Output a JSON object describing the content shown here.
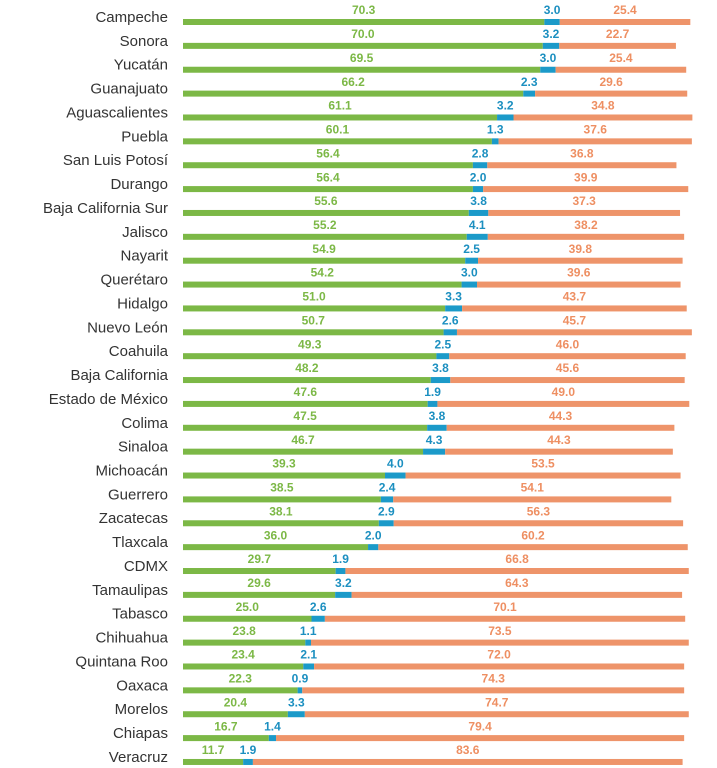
{
  "chart_data": {
    "type": "stacked-bar-horizontal",
    "categories": [
      "Campeche",
      "Sonora",
      "Yucatán",
      "Guanajuato",
      "Aguascalientes",
      "Puebla",
      "San Luis Potosí",
      "Durango",
      "Baja California Sur",
      "Jalisco",
      "Nayarit",
      "Querétaro",
      "Hidalgo",
      "Nuevo León",
      "Coahuila",
      "Baja California",
      "Estado de México",
      "Colima",
      "Sinaloa",
      "Michoacán",
      "Guerrero",
      "Zacatecas",
      "Tlaxcala",
      "CDMX",
      "Tamaulipas",
      "Tabasco",
      "Chihuahua",
      "Quintana Roo",
      "Oaxaca",
      "Morelos",
      "Chiapas",
      "Veracruz"
    ],
    "xlim": [
      0,
      100
    ],
    "series": [
      {
        "color": "#7cb846",
        "label_color": "#7cb846",
        "values": [
          70.3,
          70.0,
          69.5,
          66.2,
          61.1,
          60.1,
          56.4,
          56.4,
          55.6,
          55.2,
          54.9,
          54.2,
          51.0,
          50.7,
          49.3,
          48.2,
          47.6,
          47.5,
          46.7,
          39.3,
          38.5,
          38.1,
          36.0,
          29.7,
          29.6,
          25.0,
          23.8,
          23.4,
          22.3,
          20.4,
          16.7,
          11.7
        ],
        "value_labels": [
          "70.3",
          "70.0",
          "69.5",
          "66.2",
          "61.1",
          "60.1",
          "56.4",
          "56.4",
          "55.6",
          "55.2",
          "54.9",
          "54.2",
          "51.0",
          "50.7",
          "49.3",
          "48.2",
          "47.6",
          "47.5",
          "46.7",
          "39.3",
          "38.5",
          "38.1",
          "36.0",
          "29.7",
          "29.6",
          "25.0",
          "23.8",
          "23.4",
          "22.3",
          "20.4",
          "16.7",
          "11.7"
        ]
      },
      {
        "color": "#1b9ac9",
        "label_color": "#1b8fc0",
        "values": [
          3.0,
          3.2,
          3.0,
          2.3,
          3.2,
          1.3,
          2.8,
          2.0,
          3.8,
          4.1,
          2.5,
          3.0,
          3.3,
          2.6,
          2.5,
          3.8,
          1.9,
          3.8,
          4.3,
          4.0,
          2.4,
          2.9,
          2.0,
          1.9,
          3.2,
          2.6,
          1.1,
          2.1,
          0.9,
          3.3,
          1.4,
          1.9
        ],
        "value_labels": [
          "3.0",
          "3.2",
          "3.0",
          "2.3",
          "3.2",
          "1.3",
          "2.8",
          "2.0",
          "3.8",
          "4.1",
          "2.5",
          "3.0",
          "3.3",
          "2.6",
          "2.5",
          "3.8",
          "1.9",
          "3.8",
          "4.3",
          "4.0",
          "2.4",
          "2.9",
          "2.0",
          "1.9",
          "3.2",
          "2.6",
          "1.1",
          "2.1",
          "0.9",
          "3.3",
          "1.4",
          "1.9"
        ]
      },
      {
        "color": "#ee946a",
        "label_color": "#ee8f62",
        "values": [
          25.4,
          22.7,
          25.4,
          29.6,
          34.8,
          37.6,
          36.8,
          39.9,
          37.3,
          38.2,
          39.8,
          39.6,
          43.7,
          45.7,
          46.0,
          45.6,
          49.0,
          44.3,
          44.3,
          53.5,
          54.1,
          56.3,
          60.2,
          66.8,
          64.3,
          70.1,
          73.5,
          72.0,
          74.3,
          74.7,
          79.4,
          83.6
        ],
        "value_labels": [
          "25.4",
          "22.7",
          "25.4",
          "29.6",
          "34.8",
          "37.6",
          "36.8",
          "39.9",
          "37.3",
          "38.2",
          "39.8",
          "39.6",
          "43.7",
          "45.7",
          "46.0",
          "45.6",
          "49.0",
          "44.3",
          "44.3",
          "53.5",
          "54.1",
          "56.3",
          "60.2",
          "66.8",
          "64.3",
          "70.1",
          "73.5",
          "72.0",
          "74.3",
          "74.7",
          "79.4",
          "83.6"
        ]
      }
    ]
  }
}
